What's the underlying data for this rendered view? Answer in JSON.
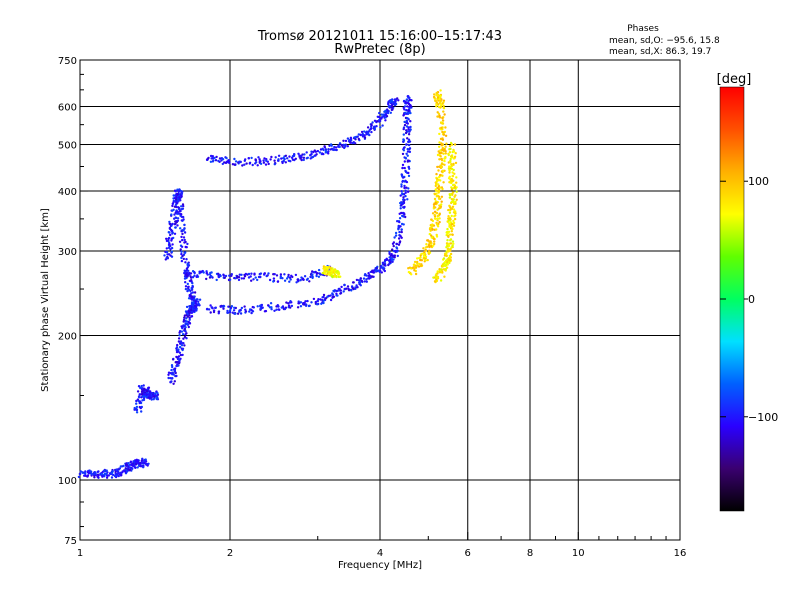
{
  "chart_data": {
    "type": "scatter",
    "title": "Tromsø 20121011 15:16:00–15:17:43",
    "subtitle": "RwPretec (8p)",
    "xlabel": "Frequency [MHz]",
    "ylabel": "Stationary phase Virtual Height [km]",
    "x_scale": "log",
    "y_scale": "log",
    "xlim": [
      1,
      16
    ],
    "ylim": [
      75,
      750
    ],
    "x_ticks": [
      1,
      2,
      4,
      6,
      8,
      10,
      16
    ],
    "x_tick_labels": [
      "1",
      "2",
      "4",
      "6",
      "8",
      "10",
      "16"
    ],
    "x_gridlines": [
      2,
      4,
      6,
      8,
      10
    ],
    "y_ticks": [
      75,
      100,
      200,
      300,
      400,
      500,
      600,
      750
    ],
    "y_tick_labels": [
      "75",
      "100",
      "200",
      "300",
      "400",
      "500",
      "600",
      "750"
    ],
    "y_gridlines": [
      100,
      200,
      300,
      400,
      500,
      600
    ],
    "grid": true,
    "stats": {
      "heading": "Phases",
      "line1": "mean, sd,O: −95.6, 15.8",
      "line2": "mean, sd,X:  86.3, 19.7"
    },
    "colorbar": {
      "label": "[deg]",
      "range": [
        -180,
        180
      ],
      "ticks": [
        100,
        0,
        -100
      ],
      "tick_labels": [
        "100",
        "0",
        "−100"
      ],
      "colors": [
        "#000000",
        "#3a0070",
        "#2a00ff",
        "#0060ff",
        "#00e0ff",
        "#00ff60",
        "#60ff00",
        "#ffff00",
        "#ffb000",
        "#ff5000",
        "#ff0000"
      ]
    },
    "traces": [
      {
        "mode": "O",
        "phase": -100,
        "points": [
          [
            1.0,
            103
          ],
          [
            1.1,
            103
          ],
          [
            1.18,
            103
          ],
          [
            1.25,
            106
          ],
          [
            1.3,
            109
          ],
          [
            1.36,
            108
          ]
        ]
      },
      {
        "mode": "O",
        "phase": -100,
        "points": [
          [
            1.3,
            140
          ],
          [
            1.34,
            155
          ],
          [
            1.38,
            150
          ],
          [
            1.42,
            150
          ]
        ]
      },
      {
        "mode": "O",
        "phase": -100,
        "points": [
          [
            1.52,
            160
          ],
          [
            1.57,
            180
          ],
          [
            1.62,
            205
          ],
          [
            1.66,
            225
          ],
          [
            1.7,
            230
          ]
        ]
      },
      {
        "mode": "O",
        "phase": -100,
        "points": [
          [
            1.5,
            290
          ],
          [
            1.53,
            330
          ],
          [
            1.56,
            380
          ],
          [
            1.58,
            400
          ],
          [
            1.6,
            330
          ],
          [
            1.64,
            270
          ],
          [
            1.68,
            240
          ],
          [
            1.72,
            232
          ]
        ]
      },
      {
        "mode": "O",
        "phase": -100,
        "points": [
          [
            1.8,
            227
          ],
          [
            2.1,
            226
          ],
          [
            2.5,
            230
          ],
          [
            3.0,
            236
          ],
          [
            3.4,
            250
          ],
          [
            3.8,
            266
          ],
          [
            4.1,
            280
          ],
          [
            4.3,
            300
          ],
          [
            4.45,
            360
          ],
          [
            4.5,
            420
          ],
          [
            4.52,
            500
          ],
          [
            4.53,
            580
          ],
          [
            4.55,
            630
          ]
        ]
      },
      {
        "mode": "O",
        "phase": -100,
        "points": [
          [
            1.62,
            270
          ],
          [
            1.9,
            265
          ],
          [
            2.3,
            265
          ],
          [
            2.8,
            262
          ],
          [
            3.2,
            275
          ]
        ]
      },
      {
        "mode": "O",
        "phase": -100,
        "points": [
          [
            1.8,
            465
          ],
          [
            2.1,
            460
          ],
          [
            2.5,
            463
          ],
          [
            2.9,
            475
          ],
          [
            3.3,
            495
          ],
          [
            3.7,
            520
          ],
          [
            4.0,
            560
          ],
          [
            4.2,
            600
          ],
          [
            4.3,
            620
          ]
        ]
      },
      {
        "mode": "X",
        "phase": 90,
        "points": [
          [
            4.6,
            270
          ],
          [
            4.9,
            290
          ],
          [
            5.1,
            320
          ],
          [
            5.2,
            360
          ],
          [
            5.25,
            400
          ],
          [
            5.3,
            450
          ],
          [
            5.35,
            500
          ],
          [
            5.3,
            600
          ],
          [
            5.2,
            640
          ]
        ]
      },
      {
        "mode": "X",
        "phase": 80,
        "points": [
          [
            5.2,
            260
          ],
          [
            5.4,
            280
          ],
          [
            5.5,
            300
          ],
          [
            5.55,
            340
          ],
          [
            5.6,
            380
          ],
          [
            5.6,
            430
          ],
          [
            5.58,
            500
          ]
        ]
      },
      {
        "mode": "X",
        "phase": 75,
        "points": [
          [
            3.1,
            275
          ],
          [
            3.2,
            270
          ],
          [
            3.3,
            268
          ]
        ]
      }
    ]
  }
}
